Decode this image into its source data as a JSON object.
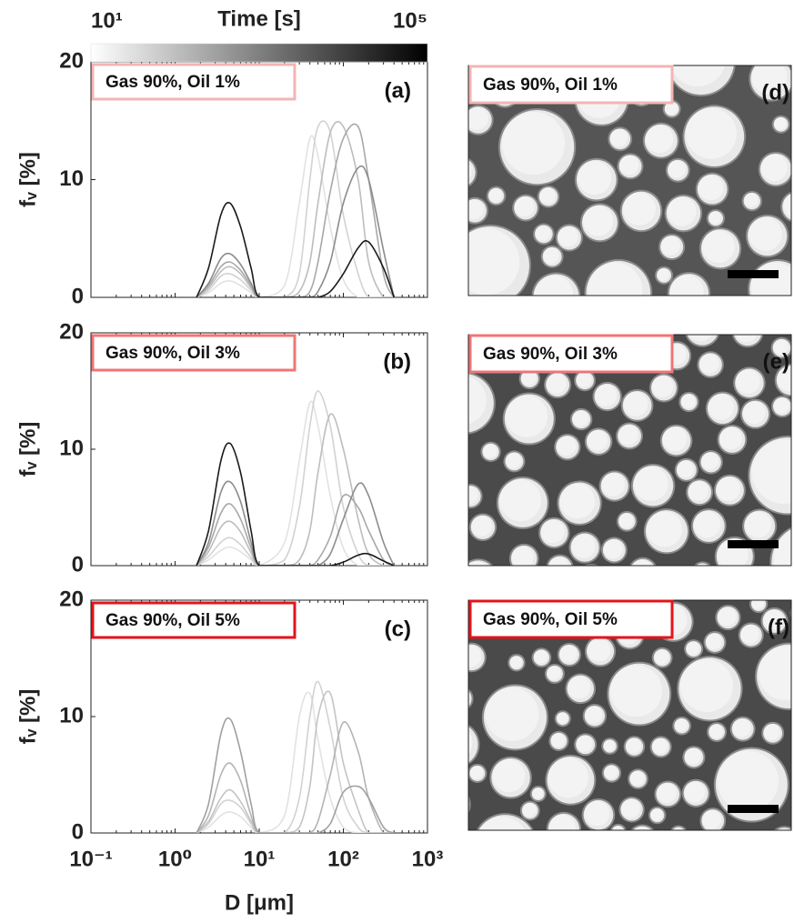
{
  "chart_data": [
    {
      "type": "line",
      "xscale": "log",
      "xlim": [
        0.1,
        1000
      ],
      "xticks": [
        0.1,
        1,
        10,
        100,
        1000
      ],
      "ylim": [
        0,
        20
      ],
      "yticks": [
        0,
        10,
        20
      ],
      "ylabel": "fᵥ [%]",
      "annotation": "Gas 90%, Oil 1%",
      "annotation_color": "#f4b4b4",
      "panel_label": "(a)",
      "colorbar": {
        "label": "Time [s]",
        "lim": [
          10,
          100000
        ],
        "colors": [
          "#ffffff",
          "#000000"
        ],
        "ticks": [
          {
            "value": 10,
            "label": "10¹"
          },
          {
            "value": 100000,
            "label": "10⁵"
          }
        ]
      },
      "x": [
        1.8,
        2.5,
        3.5,
        4.5,
        6,
        8,
        10,
        20,
        30,
        40,
        50,
        70,
        100,
        150,
        200,
        300,
        400
      ],
      "series": [
        {
          "color": "#e2e2e2",
          "values": [
            0,
            0.4,
            1.2,
            1.4,
            1,
            0.4,
            0,
            1,
            8,
            13.5,
            12,
            6,
            1.5,
            0,
            0,
            0,
            0
          ]
        },
        {
          "color": "#d2d2d2",
          "values": [
            0,
            0.6,
            1.8,
            2,
            1.5,
            0.6,
            0,
            0,
            2,
            10,
            14.5,
            14,
            7,
            2,
            0,
            0,
            0
          ]
        },
        {
          "color": "#bdbdbd",
          "values": [
            0,
            0.8,
            2.2,
            2.6,
            2,
            0.8,
            0,
            0,
            0.5,
            3,
            8,
            14,
            14.5,
            10,
            3,
            0,
            0
          ]
        },
        {
          "color": "#a8a8a8",
          "values": [
            0,
            1,
            2.6,
            3,
            2.3,
            1,
            0,
            0,
            0,
            0.5,
            3,
            9,
            13.5,
            14.5,
            10,
            2,
            0
          ]
        },
        {
          "color": "#8c8c8c",
          "values": [
            0,
            1.2,
            3.3,
            3.7,
            2.8,
            1.2,
            0,
            0,
            0,
            0,
            0.5,
            3,
            8,
            11,
            10,
            4,
            0
          ]
        },
        {
          "color": "#1a1a1a",
          "values": [
            0,
            2.5,
            7,
            8,
            6,
            2.5,
            0,
            0,
            0,
            0,
            0,
            0.5,
            2,
            4.2,
            4.7,
            2.5,
            0
          ]
        }
      ]
    },
    {
      "type": "line",
      "xscale": "log",
      "xlim": [
        0.1,
        1000
      ],
      "xticks": [
        0.1,
        1,
        10,
        100,
        1000
      ],
      "ylim": [
        0,
        20
      ],
      "yticks": [
        0,
        10,
        20
      ],
      "ylabel": "fᵥ [%]",
      "annotation": "Gas 90%, Oil 3%",
      "annotation_color": "#f07575",
      "panel_label": "(b)",
      "x": [
        1.8,
        2.5,
        3.5,
        4.5,
        6,
        8,
        10,
        20,
        30,
        40,
        50,
        70,
        100,
        150,
        200,
        300,
        400
      ],
      "series": [
        {
          "color": "#e2e2e2",
          "values": [
            0,
            0.5,
            1.3,
            1.6,
            1.2,
            0.5,
            0,
            2,
            9,
            14,
            12,
            6,
            1.5,
            0,
            0,
            0,
            0
          ]
        },
        {
          "color": "#d2d2d2",
          "values": [
            0,
            0.8,
            2,
            2.4,
            1.8,
            0.7,
            0,
            0.5,
            5,
            12,
            15,
            12,
            5,
            1,
            0,
            0,
            0
          ]
        },
        {
          "color": "#bdbdbd",
          "values": [
            0,
            1.2,
            3.3,
            3.8,
            2.9,
            1.1,
            0,
            0,
            0.5,
            3,
            8,
            13,
            10,
            4,
            1,
            0,
            0
          ]
        },
        {
          "color": "#a8a8a8",
          "values": [
            0,
            1.6,
            4.5,
            5.3,
            4,
            1.5,
            0,
            0,
            0,
            0,
            0.5,
            2.5,
            6,
            5,
            3,
            0.5,
            0
          ]
        },
        {
          "color": "#8c8c8c",
          "values": [
            0,
            2,
            6.3,
            7.2,
            5.5,
            2,
            0,
            0,
            0,
            0,
            0,
            1,
            4,
            7,
            6,
            2,
            0
          ]
        },
        {
          "color": "#1a1a1a",
          "values": [
            0,
            3,
            9,
            10.5,
            8,
            3,
            0,
            0,
            0,
            0,
            0,
            0,
            0.3,
            0.9,
            1,
            0.4,
            0
          ]
        }
      ]
    },
    {
      "type": "line",
      "xscale": "log",
      "xlim": [
        0.1,
        1000
      ],
      "xticks": [
        {
          "value": 0.1,
          "label": "10⁻¹"
        },
        {
          "value": 1,
          "label": "10⁰"
        },
        {
          "value": 10,
          "label": "10¹"
        },
        {
          "value": 100,
          "label": "10²"
        },
        {
          "value": 1000,
          "label": "10³"
        }
      ],
      "xlabel": "D [μm]",
      "ylim": [
        0,
        20
      ],
      "yticks": [
        0,
        10,
        20
      ],
      "ylabel": "fᵥ [%]",
      "annotation": "Gas 90%, Oil 5%",
      "annotation_color": "#e3141b",
      "panel_label": "(c)",
      "x": [
        1.8,
        2.5,
        3.5,
        4.5,
        6,
        8,
        10,
        20,
        30,
        40,
        50,
        70,
        100,
        150,
        200,
        300,
        400
      ],
      "series": [
        {
          "color": "#e2e2e2",
          "values": [
            0,
            0.5,
            1.5,
            1.8,
            1.4,
            0.5,
            0,
            1.5,
            10,
            12,
            8,
            3,
            0.5,
            0,
            0,
            0,
            0
          ]
        },
        {
          "color": "#d2d2d2",
          "values": [
            0,
            0.8,
            2.5,
            2.8,
            2.2,
            0.8,
            0,
            0,
            3,
            10,
            13,
            9,
            3,
            0.5,
            0,
            0,
            0
          ]
        },
        {
          "color": "#c4c4c4",
          "values": [
            0,
            1,
            3,
            3.7,
            2.7,
            1,
            0,
            0,
            0.5,
            4,
            10,
            12,
            6,
            2,
            0,
            0,
            0
          ]
        },
        {
          "color": "#b4b4b4",
          "values": [
            0,
            1.5,
            5,
            6,
            4.5,
            1.5,
            0,
            0,
            0,
            0,
            1,
            5,
            9.5,
            7,
            3,
            0,
            0
          ]
        },
        {
          "color": "#a0a0a0",
          "values": [
            0,
            2.5,
            8.5,
            9.8,
            7,
            2.5,
            0,
            0,
            0,
            0,
            0,
            0.8,
            3.5,
            4,
            3,
            0.5,
            0
          ]
        }
      ]
    }
  ],
  "images": [
    {
      "label": "Gas 90%, Oil 1%",
      "border": "#f4b4b4",
      "panel_label": "(d)"
    },
    {
      "label": "Gas 90%, Oil 3%",
      "border": "#f07575",
      "panel_label": "(e)"
    },
    {
      "label": "Gas 90%, Oil 5%",
      "border": "#e3141b",
      "panel_label": "(f)"
    }
  ]
}
